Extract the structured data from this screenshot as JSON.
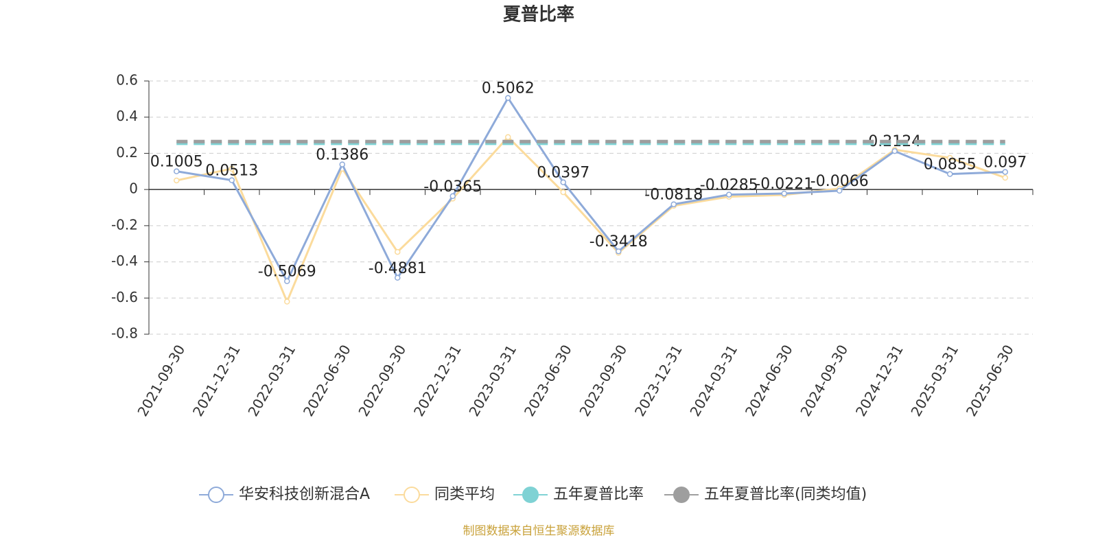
{
  "chart_data": {
    "type": "line",
    "title": "夏普比率",
    "categories": [
      "2021-09-30",
      "2021-12-31",
      "2022-03-31",
      "2022-06-30",
      "2022-09-30",
      "2022-12-31",
      "2023-03-31",
      "2023-06-30",
      "2023-09-30",
      "2023-12-31",
      "2024-03-31",
      "2024-06-30",
      "2024-09-30",
      "2024-12-31",
      "2025-03-31",
      "2025-06-30"
    ],
    "series": [
      {
        "name": "华安科技创新混合A",
        "color": "#8eaad9",
        "line_style": "solid",
        "show_labels": true,
        "values": [
          0.1005,
          0.0513,
          -0.5069,
          0.1386,
          -0.4881,
          -0.0365,
          0.5062,
          0.0397,
          -0.3418,
          -0.0818,
          -0.0285,
          -0.0221,
          -0.0066,
          0.2124,
          0.0855,
          0.097
        ]
      },
      {
        "name": "同类平均",
        "color": "#fbdb9c",
        "line_style": "solid",
        "show_labels": false,
        "values": [
          0.05,
          0.115,
          -0.62,
          0.115,
          -0.345,
          -0.05,
          0.29,
          -0.015,
          -0.35,
          -0.09,
          -0.04,
          -0.03,
          0.005,
          0.22,
          0.175,
          0.065
        ]
      },
      {
        "name": "五年夏普比率",
        "color": "#7fd2d4",
        "line_style": "dashed",
        "show_labels": false,
        "values": [
          0.255,
          0.255,
          0.255,
          0.255,
          0.255,
          0.255,
          0.255,
          0.255,
          0.255,
          0.255,
          0.255,
          0.255,
          0.255,
          0.255,
          0.255,
          0.255
        ]
      },
      {
        "name": "五年夏普比率(同类均值)",
        "color": "#9e9e9e",
        "line_style": "dashed",
        "show_labels": false,
        "values": [
          0.265,
          0.265,
          0.265,
          0.265,
          0.265,
          0.265,
          0.265,
          0.265,
          0.265,
          0.265,
          0.265,
          0.265,
          0.265,
          0.265,
          0.265,
          0.265
        ]
      }
    ],
    "ylim": [
      -0.8,
      0.6
    ],
    "yticks": [
      -0.8,
      -0.6,
      -0.4,
      -0.2,
      0,
      0.2,
      0.4,
      0.6
    ],
    "grid": true,
    "legend": "bottom",
    "source": "制图数据来自恒生聚源数据库"
  }
}
